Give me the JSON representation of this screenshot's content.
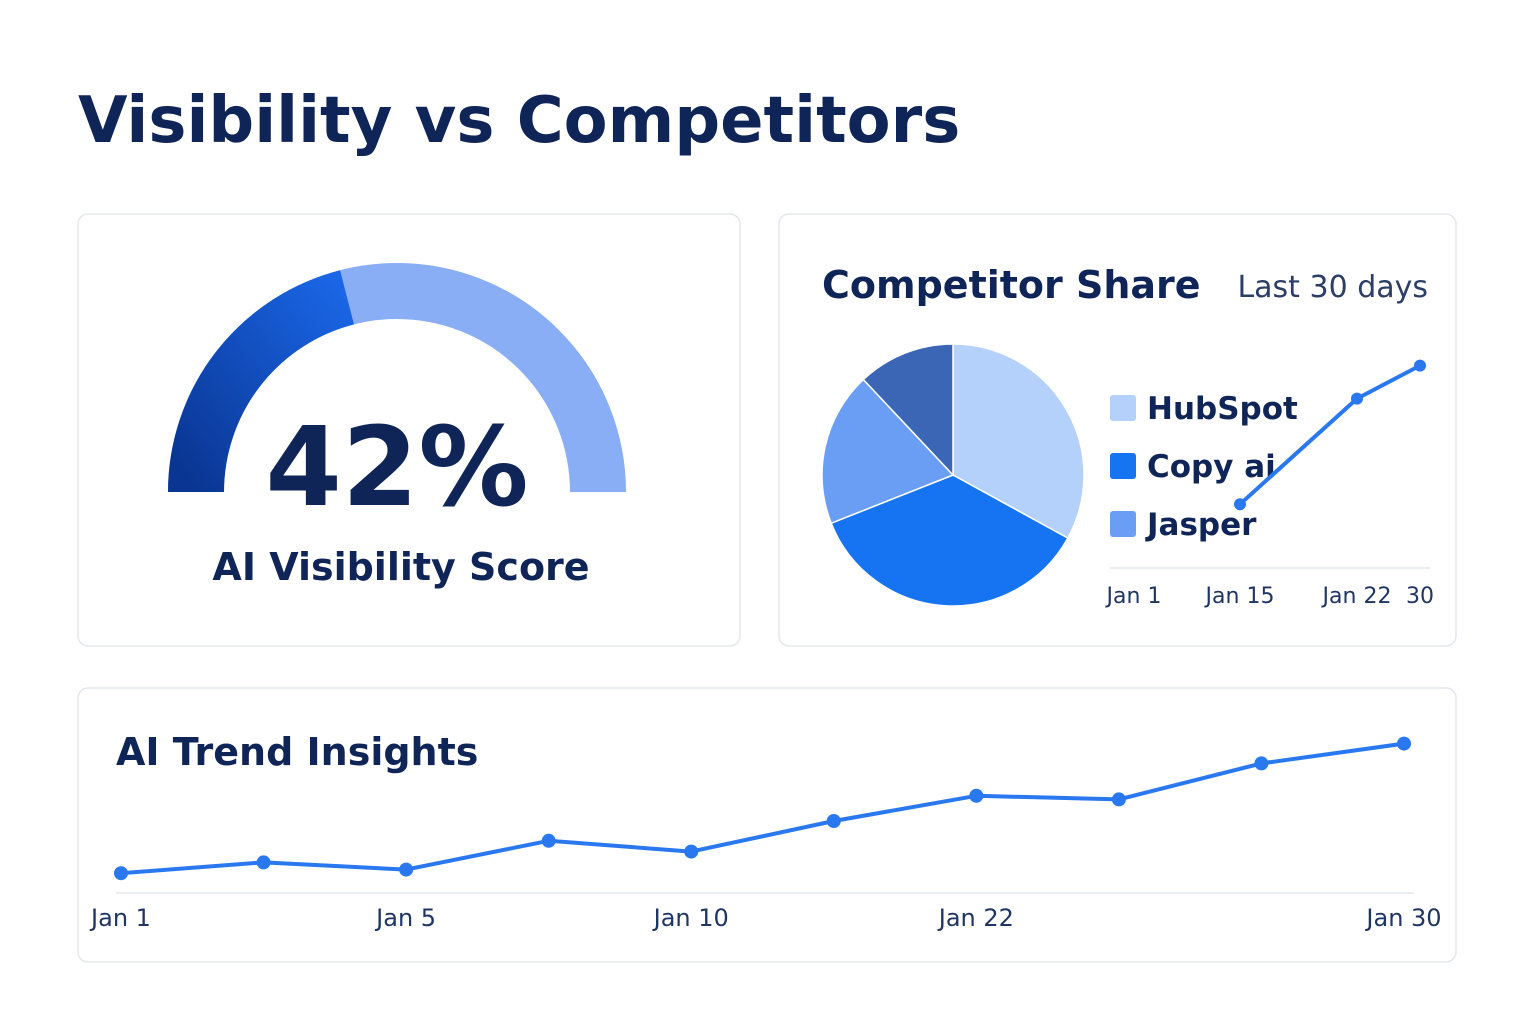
{
  "title": "Visibility vs Competitors",
  "chart_data": [
    {
      "type": "gauge",
      "value": 42,
      "value_label": "42%",
      "label": "AI Visibility Score",
      "ylim": [
        0,
        100
      ],
      "color": "#1456d6",
      "track_color": "#89aef5"
    },
    {
      "type": "pie",
      "title": "Competitor Share",
      "subtitle": "Last 30 days",
      "categories": [
        "HubSpot",
        "Copy ai",
        "Jasper",
        null
      ],
      "values": [
        33,
        36,
        19,
        12
      ],
      "colors": [
        "#b3d1fb",
        "#1673f2",
        "#6a9ef5",
        "#3a66b5"
      ]
    },
    {
      "type": "line",
      "categories": [
        "Jan 1",
        "Jan 15",
        "Jan 22",
        "30"
      ],
      "values": [
        null,
        29,
        77,
        92
      ],
      "ylim": [
        0,
        100
      ],
      "color": "#2a78f0"
    },
    {
      "type": "line",
      "title": "AI Trend Insights",
      "categories": [
        "Jan 1",
        null,
        "Jan 5",
        null,
        "Jan 10",
        null,
        "Jan 22",
        null,
        null,
        "Jan 30"
      ],
      "values": [
        11,
        17,
        13,
        29,
        23,
        40,
        54,
        52,
        72,
        83
      ],
      "ylim": [
        0,
        100
      ],
      "color": "#2a78f0"
    }
  ]
}
